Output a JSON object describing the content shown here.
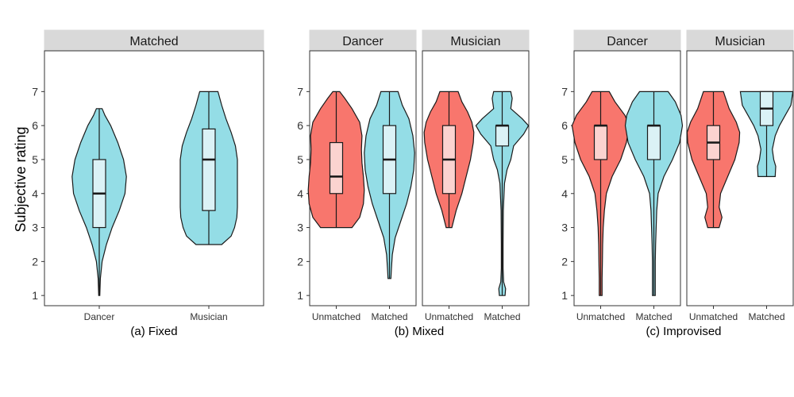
{
  "y_axis": {
    "label": "Subjective rating",
    "ticks": [
      "1",
      "2",
      "3",
      "4",
      "5",
      "6",
      "7"
    ]
  },
  "colors": {
    "Unmatched": "#f8766d",
    "Matched": "#94dde6",
    "box_Unmatched": "#fbd3d0",
    "box_Matched": "#dbf2f6",
    "strip": "#d9d9d9"
  },
  "chart_data": [
    {
      "type": "violin",
      "caption": "(a) Fixed",
      "ylabel": "Subjective rating",
      "ylim": [
        0.7,
        8.2
      ],
      "yticks": [
        1,
        2,
        3,
        4,
        5,
        6,
        7
      ],
      "grid": false,
      "facets": [
        {
          "strip": "Matched",
          "categories": [
            "Dancer",
            "Musician"
          ],
          "groups": [
            {
              "category": "Dancer",
              "fill_group": "Matched",
              "min": 1,
              "q1": 3,
              "median": 4,
              "q3": 5,
              "max": 6.5,
              "density": [
                [
                  1,
                  0.02
                ],
                [
                  1.5,
                  0.04
                ],
                [
                  2,
                  0.1
                ],
                [
                  2.5,
                  0.25
                ],
                [
                  3,
                  0.45
                ],
                [
                  3.5,
                  0.7
                ],
                [
                  4,
                  0.9
                ],
                [
                  4.5,
                  0.95
                ],
                [
                  5,
                  0.85
                ],
                [
                  5.5,
                  0.65
                ],
                [
                  6,
                  0.4
                ],
                [
                  6.3,
                  0.2
                ],
                [
                  6.5,
                  0.1
                ]
              ]
            },
            {
              "category": "Musician",
              "fill_group": "Matched",
              "min": 2.5,
              "q1": 3.5,
              "median": 5,
              "q3": 5.9,
              "max": 7,
              "density": [
                [
                  2.5,
                  0.45
                ],
                [
                  2.75,
                  0.78
                ],
                [
                  3,
                  0.9
                ],
                [
                  3.3,
                  0.98
                ],
                [
                  3.6,
                  1
                ],
                [
                  3.9,
                  1
                ],
                [
                  4.2,
                  1
                ],
                [
                  4.6,
                  1
                ],
                [
                  5,
                  1
                ],
                [
                  5.4,
                  0.93
                ],
                [
                  5.8,
                  0.78
                ],
                [
                  6.2,
                  0.6
                ],
                [
                  6.6,
                  0.45
                ],
                [
                  7,
                  0.32
                ]
              ]
            }
          ]
        }
      ]
    },
    {
      "type": "violin",
      "caption": "(b) Mixed",
      "ylim": [
        0.7,
        8.2
      ],
      "yticks": [
        1,
        2,
        3,
        4,
        5,
        6,
        7
      ],
      "grid": false,
      "facets": [
        {
          "strip": "Dancer",
          "categories": [
            "Unmatched",
            "Matched"
          ],
          "groups": [
            {
              "category": "Unmatched",
              "fill_group": "Unmatched",
              "min": 3,
              "q1": 4,
              "median": 4.5,
              "q3": 5.5,
              "max": 7,
              "density": [
                [
                  3,
                  0.55
                ],
                [
                  3.3,
                  0.82
                ],
                [
                  3.7,
                  0.95
                ],
                [
                  4.1,
                  0.98
                ],
                [
                  4.5,
                  0.95
                ],
                [
                  4.9,
                  0.9
                ],
                [
                  5.3,
                  0.88
                ],
                [
                  5.7,
                  0.9
                ],
                [
                  6.1,
                  0.82
                ],
                [
                  6.5,
                  0.55
                ],
                [
                  6.8,
                  0.3
                ],
                [
                  7,
                  0.12
                ]
              ]
            },
            {
              "category": "Matched",
              "fill_group": "Matched",
              "min": 1.5,
              "q1": 4,
              "median": 5,
              "q3": 6,
              "max": 7,
              "density": [
                [
                  1.5,
                  0.05
                ],
                [
                  1.8,
                  0.07
                ],
                [
                  2.2,
                  0.1
                ],
                [
                  2.7,
                  0.2
                ],
                [
                  3.2,
                  0.4
                ],
                [
                  3.7,
                  0.6
                ],
                [
                  4.2,
                  0.75
                ],
                [
                  4.7,
                  0.85
                ],
                [
                  5.2,
                  0.88
                ],
                [
                  5.7,
                  0.82
                ],
                [
                  6.2,
                  0.68
                ],
                [
                  6.6,
                  0.45
                ],
                [
                  7,
                  0.3
                ]
              ]
            }
          ]
        },
        {
          "strip": "Musician",
          "categories": [
            "Unmatched",
            "Matched"
          ],
          "groups": [
            {
              "category": "Unmatched",
              "fill_group": "Unmatched",
              "min": 3,
              "q1": 4,
              "median": 5,
              "q3": 6,
              "max": 7,
              "density": [
                [
                  3,
                  0.1
                ],
                [
                  3.5,
                  0.25
                ],
                [
                  4,
                  0.45
                ],
                [
                  4.5,
                  0.6
                ],
                [
                  5,
                  0.75
                ],
                [
                  5.5,
                  0.85
                ],
                [
                  5.8,
                  0.87
                ],
                [
                  6.1,
                  0.8
                ],
                [
                  6.4,
                  0.65
                ],
                [
                  6.7,
                  0.45
                ],
                [
                  7,
                  0.32
                ]
              ]
            },
            {
              "category": "Matched",
              "fill_group": "Matched",
              "min": 1,
              "q1": 5.4,
              "median": 6,
              "q3": 6,
              "max": 7,
              "density": [
                [
                  1,
                  0.1
                ],
                [
                  1.2,
                  0.12
                ],
                [
                  1.4,
                  0.05
                ],
                [
                  1.8,
                  0.03
                ],
                [
                  2.5,
                  0.03
                ],
                [
                  3.5,
                  0.04
                ],
                [
                  4.3,
                  0.08
                ],
                [
                  4.7,
                  0.17
                ],
                [
                  5,
                  0.3
                ],
                [
                  5.4,
                  0.4
                ],
                [
                  5.75,
                  0.75
                ],
                [
                  6,
                  0.92
                ],
                [
                  6.2,
                  0.7
                ],
                [
                  6.5,
                  0.3
                ],
                [
                  6.8,
                  0.35
                ],
                [
                  7,
                  0.3
                ]
              ]
            }
          ]
        }
      ]
    },
    {
      "type": "violin",
      "caption": "(c) Improvised",
      "ylim": [
        0.7,
        8.2
      ],
      "yticks": [
        1,
        2,
        3,
        4,
        5,
        6,
        7
      ],
      "grid": false,
      "facets": [
        {
          "strip": "Dancer",
          "categories": [
            "Unmatched",
            "Matched"
          ],
          "groups": [
            {
              "category": "Unmatched",
              "fill_group": "Unmatched",
              "min": 1,
              "q1": 5,
              "median": 6,
              "q3": 6,
              "max": 7,
              "density": [
                [
                  1,
                  0.05
                ],
                [
                  1.5,
                  0.05
                ],
                [
                  2,
                  0.06
                ],
                [
                  2.5,
                  0.07
                ],
                [
                  3,
                  0.09
                ],
                [
                  3.5,
                  0.13
                ],
                [
                  4,
                  0.2
                ],
                [
                  4.5,
                  0.4
                ],
                [
                  5,
                  0.7
                ],
                [
                  5.5,
                  0.9
                ],
                [
                  6,
                  1
                ],
                [
                  6.3,
                  0.85
                ],
                [
                  6.7,
                  0.5
                ],
                [
                  7,
                  0.3
                ]
              ]
            },
            {
              "category": "Matched",
              "fill_group": "Matched",
              "min": 1,
              "q1": 5,
              "median": 6,
              "q3": 6,
              "max": 7,
              "density": [
                [
                  1,
                  0.05
                ],
                [
                  1.5,
                  0.05
                ],
                [
                  2,
                  0.05
                ],
                [
                  2.5,
                  0.06
                ],
                [
                  3,
                  0.08
                ],
                [
                  3.5,
                  0.1
                ],
                [
                  4,
                  0.15
                ],
                [
                  4.5,
                  0.35
                ],
                [
                  5,
                  0.65
                ],
                [
                  5.5,
                  0.9
                ],
                [
                  6,
                  1
                ],
                [
                  6.3,
                  0.95
                ],
                [
                  6.7,
                  0.75
                ],
                [
                  7,
                  0.5
                ]
              ]
            }
          ]
        },
        {
          "strip": "Musician",
          "categories": [
            "Unmatched",
            "Matched"
          ],
          "groups": [
            {
              "category": "Unmatched",
              "fill_group": "Unmatched",
              "min": 3,
              "q1": 5,
              "median": 5.5,
              "q3": 6,
              "max": 7,
              "density": [
                [
                  3,
                  0.2
                ],
                [
                  3.3,
                  0.3
                ],
                [
                  3.6,
                  0.2
                ],
                [
                  4,
                  0.25
                ],
                [
                  4.5,
                  0.5
                ],
                [
                  5,
                  0.75
                ],
                [
                  5.5,
                  0.9
                ],
                [
                  5.8,
                  0.92
                ],
                [
                  6.1,
                  0.8
                ],
                [
                  6.5,
                  0.55
                ],
                [
                  7,
                  0.35
                ]
              ]
            },
            {
              "category": "Matched",
              "fill_group": "Matched",
              "min": 4.5,
              "q1": 6,
              "median": 6.5,
              "q3": 7,
              "max": 7,
              "density": [
                [
                  4.5,
                  0.3
                ],
                [
                  4.8,
                  0.32
                ],
                [
                  5,
                  0.25
                ],
                [
                  5.3,
                  0.2
                ],
                [
                  5.7,
                  0.3
                ],
                [
                  6,
                  0.45
                ],
                [
                  6.3,
                  0.65
                ],
                [
                  6.6,
                  0.85
                ],
                [
                  7,
                  0.92
                ]
              ]
            }
          ]
        }
      ]
    }
  ]
}
